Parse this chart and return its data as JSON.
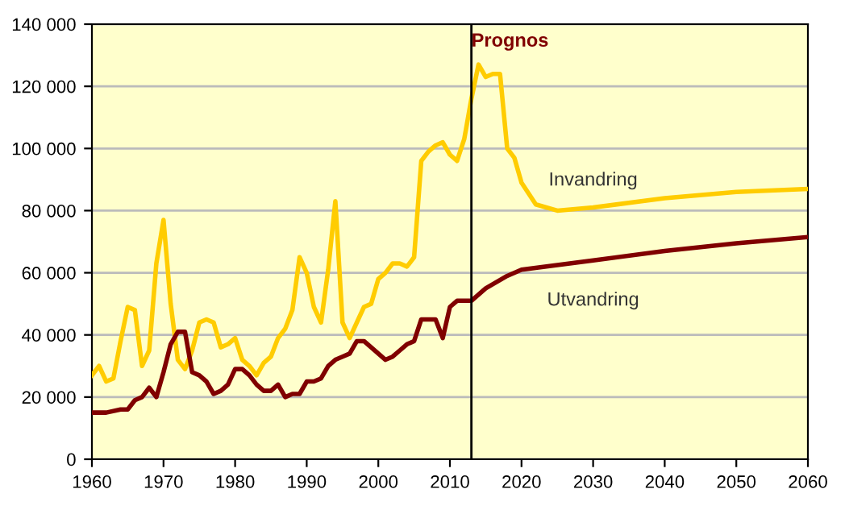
{
  "chart_data": {
    "type": "line",
    "series": [
      {
        "name": "Invandring",
        "color": "#ffcc00",
        "x": [
          1960,
          1961,
          1962,
          1963,
          1964,
          1965,
          1966,
          1967,
          1968,
          1969,
          1970,
          1971,
          1972,
          1973,
          1974,
          1975,
          1976,
          1977,
          1978,
          1979,
          1980,
          1981,
          1982,
          1983,
          1984,
          1985,
          1986,
          1987,
          1988,
          1989,
          1990,
          1991,
          1992,
          1993,
          1994,
          1995,
          1996,
          1997,
          1998,
          1999,
          2000,
          2001,
          2002,
          2003,
          2004,
          2005,
          2006,
          2007,
          2008,
          2009,
          2010,
          2011,
          2012,
          2013,
          2014,
          2015,
          2016,
          2017,
          2018,
          2019,
          2020,
          2022,
          2025,
          2030,
          2040,
          2050,
          2060
        ],
        "values": [
          27000,
          30000,
          25000,
          26000,
          38000,
          49000,
          48000,
          30000,
          35000,
          63000,
          77000,
          50000,
          32000,
          29000,
          35000,
          44000,
          45000,
          44000,
          36000,
          37000,
          39000,
          32000,
          30000,
          27000,
          31000,
          33000,
          39000,
          42000,
          48000,
          65000,
          60000,
          49000,
          44000,
          61000,
          83000,
          44000,
          39000,
          44000,
          49000,
          50000,
          58000,
          60000,
          63000,
          63000,
          62000,
          65000,
          96000,
          99000,
          101000,
          102000,
          98000,
          96000,
          103000,
          116000,
          127000,
          123000,
          124000,
          124000,
          100000,
          97000,
          89000,
          82000,
          80000,
          81000,
          84000,
          86000,
          87000
        ]
      },
      {
        "name": "Utvandring",
        "color": "#800000",
        "x": [
          1960,
          1962,
          1964,
          1965,
          1966,
          1967,
          1968,
          1969,
          1970,
          1971,
          1972,
          1973,
          1974,
          1975,
          1976,
          1977,
          1978,
          1979,
          1980,
          1981,
          1982,
          1983,
          1984,
          1985,
          1986,
          1987,
          1988,
          1989,
          1990,
          1991,
          1992,
          1993,
          1994,
          1995,
          1996,
          1997,
          1998,
          1999,
          2000,
          2001,
          2002,
          2003,
          2004,
          2005,
          2006,
          2007,
          2008,
          2009,
          2010,
          2011,
          2012,
          2013,
          2015,
          2018,
          2020,
          2025,
          2030,
          2040,
          2050,
          2060
        ],
        "values": [
          15000,
          15000,
          16000,
          16000,
          19000,
          20000,
          23000,
          20000,
          28000,
          37000,
          41000,
          41000,
          28000,
          27000,
          25000,
          21000,
          22000,
          24000,
          29000,
          29000,
          27000,
          24000,
          22000,
          22000,
          24000,
          20000,
          21000,
          21000,
          25000,
          25000,
          26000,
          30000,
          32000,
          33000,
          34000,
          38000,
          38000,
          36000,
          34000,
          32000,
          33000,
          35000,
          37000,
          38000,
          45000,
          45000,
          45000,
          39000,
          49000,
          51000,
          51000,
          51000,
          55000,
          59000,
          61000,
          62500,
          64000,
          67000,
          69500,
          71500
        ]
      }
    ],
    "xlim": [
      1960,
      2060
    ],
    "xticks": [
      1960,
      1970,
      1980,
      1990,
      2000,
      2010,
      2020,
      2030,
      2040,
      2050,
      2060
    ],
    "ylim": [
      0,
      140000
    ],
    "yticks": [
      0,
      {
        "value": 20000,
        "label": "20 000"
      },
      {
        "value": 40000,
        "label": "40 000"
      },
      {
        "value": 60000,
        "label": "60 000"
      },
      {
        "value": 80000,
        "label": "80 000"
      },
      {
        "value": 100000,
        "label": "100 000"
      },
      {
        "value": 120000,
        "label": "120 000"
      },
      {
        "value": 140000,
        "label": "140 000"
      }
    ],
    "grid": "y",
    "ref_lines": [
      {
        "axis": "x",
        "value": 2013,
        "label": "Prognos",
        "color": "#000000"
      }
    ]
  }
}
